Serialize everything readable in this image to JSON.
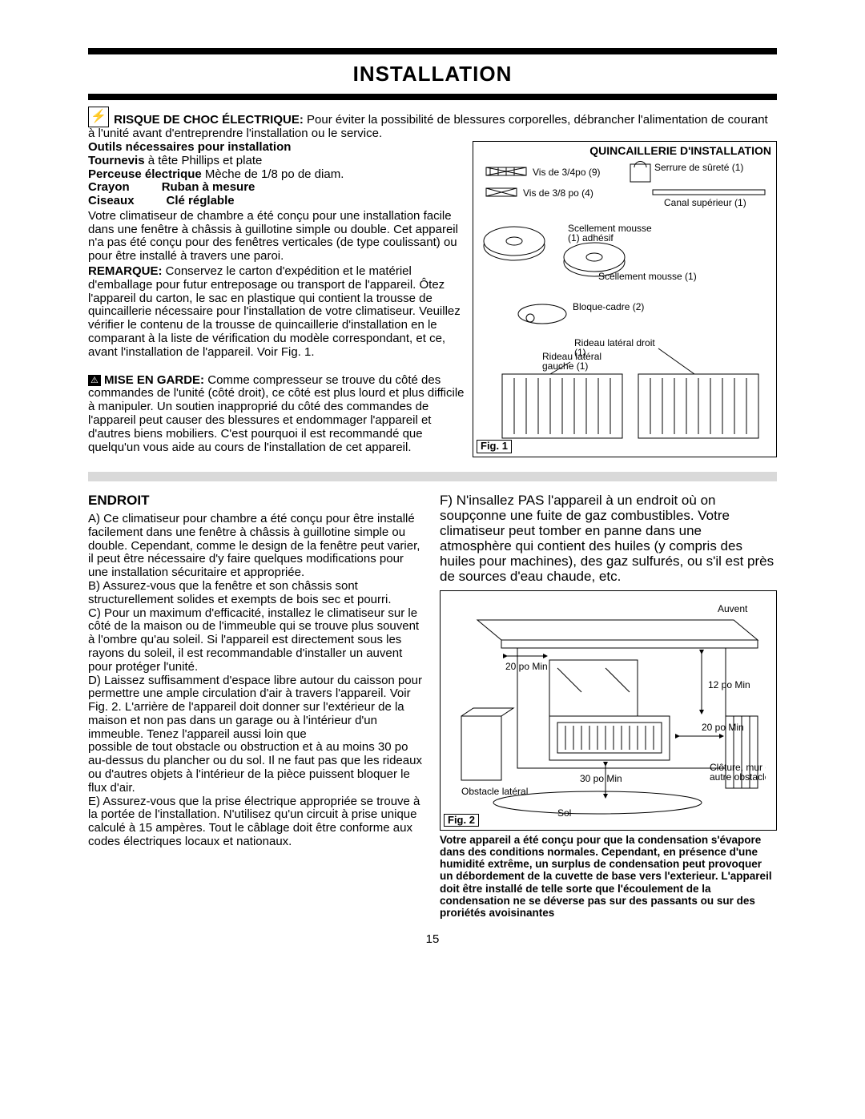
{
  "title": "INSTALLATION",
  "shock": {
    "heading": "RISQUE DE CHOC ÉLECTRIQUE:",
    "text": " Pour éviter la possibilité de blessures corporelles, débrancher l'alimentation de courant à l'unité avant d'entreprendre l'installation ou le service."
  },
  "tools": {
    "heading": "Outils nécessaires pour installation",
    "l1a": "Tournevis",
    "l1b": " à tête Phillips et plate",
    "l2a": "Perceuse électrique",
    "l2b": "  Mèche de 1/8 po de diam.",
    "l3a": "Crayon",
    "l3b": "Ruban à mesure",
    "l4a": "Ciseaux",
    "l4b": "Clé réglable"
  },
  "intro": "Votre climatiseur de chambre a été conçu pour une installation facile dans une fenêtre à châssis à guillotine simple ou double. Cet appareil n'a pas été conçu pour des fenêtres verticales (de type coulissant) ou pour être installé à travers une paroi.",
  "remarque_label": "REMARQUE:",
  "remarque": " Conservez le carton d'expédition et le matériel d'emballage pour futur entreposage ou transport de l'appareil. Ôtez l'appareil du carton, le sac en plastique qui contient la trousse de quincaillerie nécessaire pour l'installation de votre climatiseur. Veuillez vérifier le contenu de la trousse de quincaillerie d'installation en le comparant à la liste de vérification du modèle correspondant, et ce, avant l'installation de l'appareil. Voir Fig. 1.",
  "caution_label": "MISE EN GARDE:",
  "caution": " Comme compresseur se trouve du côté des commandes de l'unité (côté droit), ce côté est plus lourd et plus difficile à manipuler. Un soutien inapproprié du côté des commandes de l'appareil peut causer des blessures et endommager l'appareil et d'autres biens mobiliers. C'est pourquoi il est recommandé que quelqu'un vous aide au cours de l'installation de cet appareil.",
  "hardware": {
    "title": "QUINCAILLERIE D'INSTALLATION",
    "screw34": "Vis de 3/4po (9)",
    "lock": "Serrure de sûreté (1)",
    "screw38": "Vis de 3/8 po (4)",
    "channel": "Canal supérieur (1)",
    "foam_adh": "Scellement mousse (1) adhésif",
    "foam": "Scellement mousse (1)",
    "frame": "Bloque-cadre (2)",
    "curtain_r": "Rideau latéral droit (1)",
    "curtain_l": "Rideau latéral gauche (1)",
    "fig": "Fig. 1"
  },
  "endroit": {
    "heading": "ENDROIT",
    "a": "A) Ce climatiseur pour chambre a été conçu pour être installé facilement dans une fenêtre à châssis à guillotine simple ou double. Cependant, comme le design de la fenêtre peut varier, il peut être nécessaire d'y faire quelques modifications pour une installation sécuritaire et appropriée.",
    "b": "B) Assurez-vous que la fenêtre et son châssis sont structurellement solides et exempts de bois sec et pourri.",
    "c": "C) Pour un maximum d'efficacité, installez le climatiseur sur le côté de la maison ou de l'immeuble qui se trouve plus souvent à l'ombre qu'au soleil. Si l'appareil est directement sous les rayons du soleil, il est recommandable d'installer un auvent pour protéger l'unité.",
    "d": "D) Laissez suffisamment d'espace libre autour du caisson pour permettre une ample circulation d'air à travers l'appareil. Voir Fig. 2. L'arrière de l'appareil doit donner sur l'extérieur de la maison et non pas dans un garage ou à l'intérieur d'un immeuble. Tenez l'appareil aussi loin que",
    "d2": "possible de tout obstacle ou obstruction et à au moins 30 po au-dessus du plancher ou du sol. Il ne faut pas que les rideaux ou d'autres objets à l'intérieur de la pièce puissent bloquer le flux d'air.",
    "e": "E) Assurez-vous que la prise électrique appropriée se trouve à la portée de l'installation. N'utilisez qu'un circuit à prise unique calculé à 15 ampères. Tout le câblage doit être conforme aux codes électriques locaux et nationaux.",
    "f": "F) N'insallez PAS l'appareil à un endroit où on soupçonne une fuite de gaz combustibles. Votre climatiseur peut tomber en panne dans une atmosphère qui contient des huiles (y compris des huiles pour machines), des gaz sulfurés, ou s'il est près de sources d'eau chaude, etc."
  },
  "fig2": {
    "label": "Fig. 2",
    "awning": "Auvent",
    "d20": "20 po Min",
    "d12": "12 po Min",
    "d30": "30 po Min",
    "obs": "Obstacle latéral",
    "sol": "Sol",
    "fence": "Clôture, mur ou autre obstacle"
  },
  "note_bottom": "Votre appareil a été conçu pour que la condensation s'évapore dans des conditions normales.  Cependant, en présence d'une humidité extrême, un surplus de condensation peut provoquer un débordement de la cuvette de base vers l'exterieur. L'appareil doit être installé de telle sorte que l'écoulement de la condensation ne se déverse pas sur des passants ou sur des proriétés avoisinantes",
  "page": "15"
}
